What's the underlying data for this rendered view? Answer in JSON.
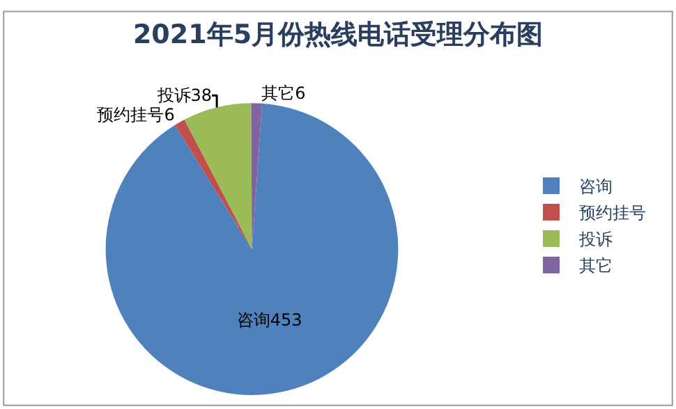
{
  "chart_data": {
    "type": "pie",
    "title": "2021年5月份热线电话受理分布图",
    "categories": [
      "咨询",
      "预约挂号",
      "投诉",
      "其它"
    ],
    "values": [
      453,
      6,
      38,
      6
    ],
    "colors": [
      "#4f81bd",
      "#c0504d",
      "#9bbb59",
      "#8064a2"
    ],
    "value_labels": [
      "咨询453",
      "预约挂号6",
      "投诉38",
      "其它6"
    ],
    "legend": "right"
  }
}
